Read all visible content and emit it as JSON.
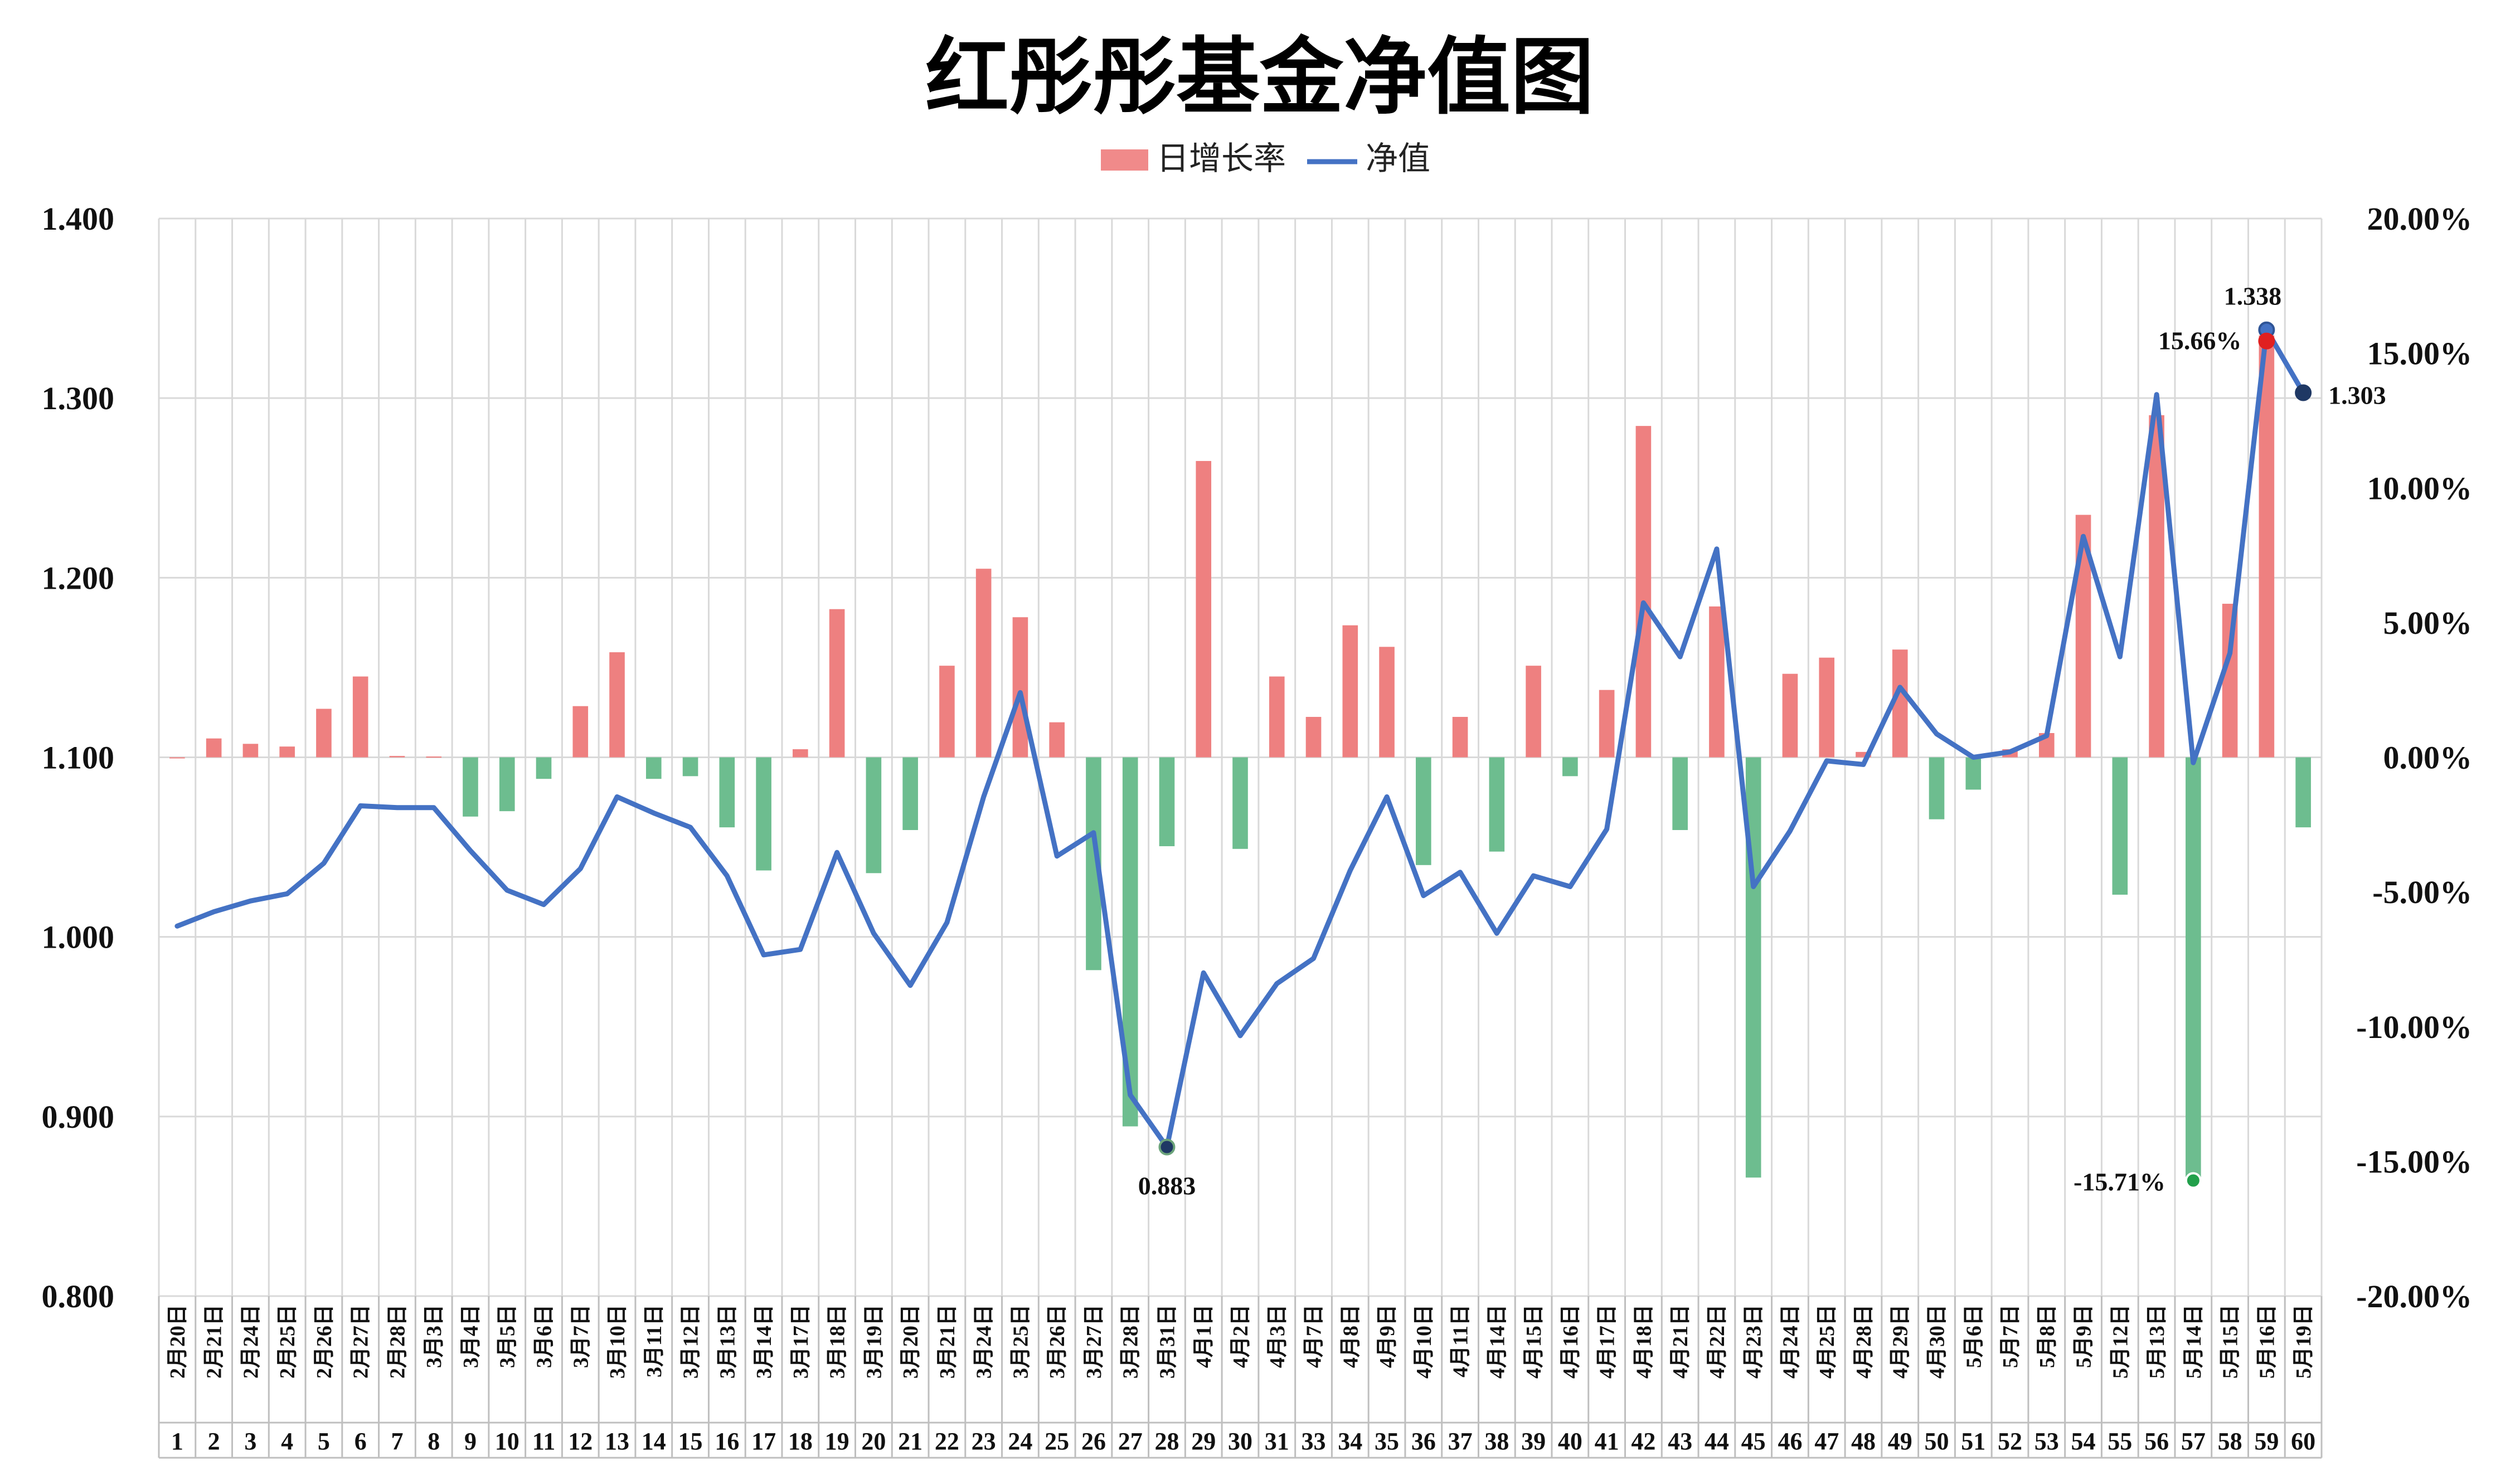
{
  "chart_data": {
    "type": "bar+line",
    "title": "红彤彤基金净值图",
    "legend": {
      "position": "top-center",
      "items": [
        {
          "name": "日增长率",
          "color": "#f08a8a",
          "kind": "bar"
        },
        {
          "name": "净值",
          "color": "#4472c4",
          "kind": "line"
        }
      ]
    },
    "colors": {
      "positive_bar": "#ee8080",
      "negative_bar": "#6dbd8f",
      "line": "#4472c4",
      "grid": "#d9d9d9"
    },
    "y_left": {
      "min": 0.8,
      "max": 1.4,
      "ticks": [
        "0.800",
        "0.900",
        "1.000",
        "1.100",
        "1.200",
        "1.300",
        "1.400"
      ]
    },
    "y_right": {
      "min": -20,
      "max": 20,
      "ticks": [
        "-20.00%",
        "-15.00%",
        "-10.00%",
        "-5.00%",
        "0.00%",
        "5.00%",
        "10.00%",
        "15.00%",
        "20.00%"
      ]
    },
    "grid": true,
    "dates": [
      "2月20日",
      "2月21日",
      "2月24日",
      "2月25日",
      "2月26日",
      "2月27日",
      "2月28日",
      "3月3日",
      "3月4日",
      "3月5日",
      "3月6日",
      "3月7日",
      "3月10日",
      "3月11日",
      "3月12日",
      "3月13日",
      "3月14日",
      "3月17日",
      "3月18日",
      "3月19日",
      "3月20日",
      "3月21日",
      "3月24日",
      "3月25日",
      "3月26日",
      "3月27日",
      "3月28日",
      "3月31日",
      "4月1日",
      "4月2日",
      "4月3日",
      "4月7日",
      "4月8日",
      "4月9日",
      "4月10日",
      "4月11日",
      "4月14日",
      "4月15日",
      "4月16日",
      "4月17日",
      "4月18日",
      "4月21日",
      "4月22日",
      "4月23日",
      "4月24日",
      "4月25日",
      "4月28日",
      "4月29日",
      "4月30日",
      "5月6日",
      "5月7日",
      "5月8日",
      "5月9日",
      "5月12日",
      "5月13日",
      "5月14日",
      "5月15日",
      "5月16日",
      "5月19日"
    ],
    "indices": [
      "1",
      "2",
      "3",
      "4",
      "5",
      "6",
      "7",
      "8",
      "9",
      "10",
      "11",
      "12",
      "13",
      "14",
      "15",
      "16",
      "17",
      "18",
      "19",
      "20",
      "21",
      "22",
      "23",
      "24",
      "25",
      "26",
      "27",
      "28",
      "29",
      "30",
      "31",
      "33",
      "34",
      "35",
      "36",
      "37",
      "38",
      "39",
      "40",
      "41",
      "42",
      "43",
      "44",
      "45",
      "46",
      "47",
      "48",
      "49",
      "50",
      "51",
      "52",
      "53",
      "54",
      "55",
      "56",
      "57",
      "58",
      "59",
      "60"
    ],
    "series": [
      {
        "name": "日增长率",
        "unit": "%",
        "values": [
          0,
          0.7,
          0.5,
          0.4,
          1.8,
          3.0,
          0.05,
          0.03,
          -2.2,
          -2.0,
          -0.8,
          1.9,
          3.9,
          -0.8,
          -0.7,
          -2.6,
          -4.2,
          0.3,
          5.5,
          -4.3,
          -2.7,
          3.4,
          7.0,
          5.2,
          1.3,
          -7.9,
          -13.7,
          -3.3,
          11.0,
          -3.4,
          3.0,
          1.5,
          4.9,
          4.1,
          -4.0,
          1.5,
          -3.5,
          3.4,
          -0.7,
          2.5,
          12.3,
          -2.7,
          5.6,
          -15.6,
          3.1,
          3.7,
          0.2,
          4.0,
          -2.3,
          -1.2,
          0.3,
          0.9,
          9.0,
          -5.1,
          12.7,
          -15.71,
          5.7,
          15.66,
          -2.6
        ]
      },
      {
        "name": "净值",
        "values": [
          1.006,
          1.014,
          1.02,
          1.024,
          1.041,
          1.073,
          1.072,
          1.072,
          1.048,
          1.026,
          1.018,
          1.038,
          1.078,
          1.069,
          1.061,
          1.034,
          0.99,
          0.993,
          1.047,
          1.002,
          0.973,
          1.008,
          1.078,
          1.136,
          1.045,
          1.058,
          0.912,
          0.883,
          0.98,
          0.945,
          0.974,
          0.988,
          1.037,
          1.078,
          1.023,
          1.036,
          1.002,
          1.034,
          1.028,
          1.06,
          1.186,
          1.156,
          1.216,
          1.028,
          1.059,
          1.098,
          1.096,
          1.139,
          1.113,
          1.1,
          1.103,
          1.112,
          1.223,
          1.156,
          1.302,
          1.097,
          1.158,
          1.338,
          1.303
        ]
      }
    ],
    "annotations": [
      {
        "text": "0.883",
        "series": "净值",
        "index": 27
      },
      {
        "text": "1.338",
        "series": "净值",
        "index": 57
      },
      {
        "text": "1.303",
        "series": "净值",
        "index": 58
      },
      {
        "text": "15.66%",
        "series": "日增长率",
        "index": 57
      },
      {
        "text": "-15.71%",
        "series": "日增长率",
        "index": 55
      }
    ]
  }
}
